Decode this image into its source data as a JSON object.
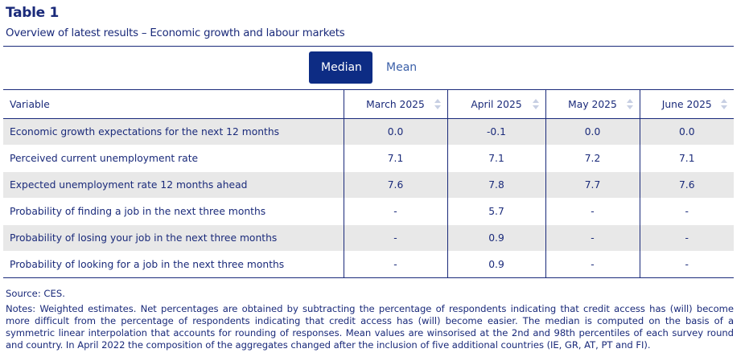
{
  "header": {
    "title": "Table 1",
    "subtitle": "Overview of latest results – Economic growth and labour markets"
  },
  "toggle": {
    "active_label": "Median",
    "inactive_label": "Mean"
  },
  "table": {
    "columns": [
      "Variable",
      "March 2025",
      "April 2025",
      "May 2025",
      "June 2025"
    ],
    "rows": [
      {
        "label": "Economic growth expectations for the next 12 months",
        "values": [
          "0.0",
          "-0.1",
          "0.0",
          "0.0"
        ]
      },
      {
        "label": "Perceived current unemployment rate",
        "values": [
          "7.1",
          "7.1",
          "7.2",
          "7.1"
        ]
      },
      {
        "label": "Expected unemployment rate 12 months ahead",
        "values": [
          "7.6",
          "7.8",
          "7.7",
          "7.6"
        ]
      },
      {
        "label": "Probability of finding a job in the next three months",
        "values": [
          "-",
          "5.7",
          "-",
          "-"
        ]
      },
      {
        "label": "Probability of losing your job in the next three months",
        "values": [
          "-",
          "0.9",
          "-",
          "-"
        ]
      },
      {
        "label": "Probability of looking for a job in the next three months",
        "values": [
          "-",
          "0.9",
          "-",
          "-"
        ]
      }
    ]
  },
  "footer": {
    "source": "Source: CES.",
    "notes": "Notes: Weighted estimates. Net percentages are obtained by subtracting the percentage of respondents indicating that credit access has (will) become more difficult from the percentage of respondents indicating that credit access has (will) become easier. The median is computed on the basis of a symmetric linear interpolation that accounts for rounding of responses. Mean values are winsorised at the 2nd and 98th percentiles of each survey round and country. In April 2022 the composition of the aggregates changed after the inclusion of five additional countries (IE, GR, AT, PT and FI)."
  },
  "colors": {
    "navy": "#1a2a7a",
    "button_active": "#0d2c84",
    "row_shade": "#e8e8e8",
    "sort_icon": "#c7cfe3"
  }
}
